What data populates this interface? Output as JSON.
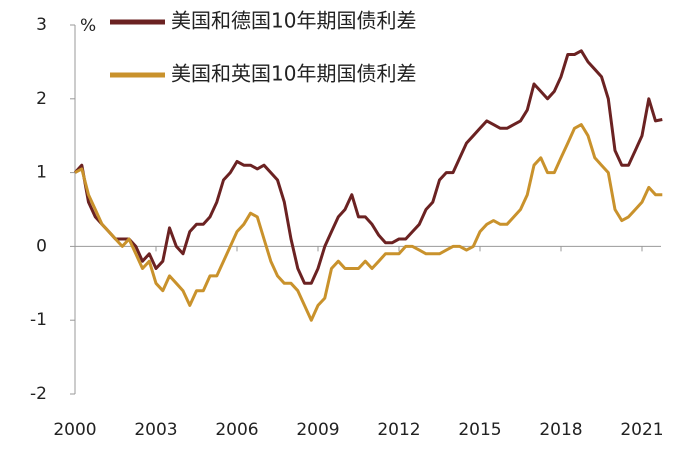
{
  "chart_data": {
    "type": "line",
    "unit": "%",
    "x": [
      2000,
      2000.25,
      2000.5,
      2000.75,
      2001,
      2001.25,
      2001.5,
      2001.75,
      2002,
      2002.25,
      2002.5,
      2002.75,
      2003,
      2003.25,
      2003.5,
      2003.75,
      2004,
      2004.25,
      2004.5,
      2004.75,
      2005,
      2005.25,
      2005.5,
      2005.75,
      2006,
      2006.25,
      2006.5,
      2006.75,
      2007,
      2007.25,
      2007.5,
      2007.75,
      2008,
      2008.25,
      2008.5,
      2008.75,
      2009,
      2009.25,
      2009.5,
      2009.75,
      2010,
      2010.25,
      2010.5,
      2010.75,
      2011,
      2011.25,
      2011.5,
      2011.75,
      2012,
      2012.25,
      2012.5,
      2012.75,
      2013,
      2013.25,
      2013.5,
      2013.75,
      2014,
      2014.25,
      2014.5,
      2014.75,
      2015,
      2015.25,
      2015.5,
      2015.75,
      2016,
      2016.25,
      2016.5,
      2016.75,
      2017,
      2017.25,
      2017.5,
      2017.75,
      2018,
      2018.25,
      2018.5,
      2018.75,
      2019,
      2019.25,
      2019.5,
      2019.75,
      2020,
      2020.25,
      2020.5,
      2020.75,
      2021,
      2021.25,
      2021.5,
      2021.75
    ],
    "series": [
      {
        "name": "美国和德国10年期国债利差",
        "color": "#6b2222",
        "values": [
          1.0,
          1.1,
          0.6,
          0.4,
          0.3,
          0.2,
          0.1,
          0.1,
          0.1,
          0.0,
          -0.2,
          -0.1,
          -0.3,
          -0.2,
          0.25,
          0.0,
          -0.1,
          0.2,
          0.3,
          0.3,
          0.4,
          0.6,
          0.9,
          1.0,
          1.15,
          1.1,
          1.1,
          1.05,
          1.1,
          1.0,
          0.9,
          0.6,
          0.1,
          -0.3,
          -0.5,
          -0.5,
          -0.3,
          0.0,
          0.2,
          0.4,
          0.5,
          0.7,
          0.4,
          0.4,
          0.3,
          0.15,
          0.05,
          0.05,
          0.1,
          0.1,
          0.2,
          0.3,
          0.5,
          0.6,
          0.9,
          1.0,
          1.0,
          1.2,
          1.4,
          1.5,
          1.6,
          1.7,
          1.65,
          1.6,
          1.6,
          1.65,
          1.7,
          1.85,
          2.2,
          2.1,
          2.0,
          2.1,
          2.3,
          2.6,
          2.6,
          2.65,
          2.5,
          2.4,
          2.3,
          2.0,
          1.3,
          1.1,
          1.1,
          1.3,
          1.5,
          2.0,
          1.7,
          1.72
        ]
      },
      {
        "name": "美国和英国10年期国债利差",
        "color": "#c9922c",
        "values": [
          1.0,
          1.05,
          0.7,
          0.5,
          0.3,
          0.2,
          0.1,
          0.0,
          0.1,
          -0.1,
          -0.3,
          -0.2,
          -0.5,
          -0.6,
          -0.4,
          -0.5,
          -0.6,
          -0.8,
          -0.6,
          -0.6,
          -0.4,
          -0.4,
          -0.2,
          0.0,
          0.2,
          0.3,
          0.45,
          0.4,
          0.1,
          -0.2,
          -0.4,
          -0.5,
          -0.5,
          -0.6,
          -0.8,
          -1.0,
          -0.8,
          -0.7,
          -0.3,
          -0.2,
          -0.3,
          -0.3,
          -0.3,
          -0.2,
          -0.3,
          -0.2,
          -0.1,
          -0.1,
          -0.1,
          0.0,
          0.0,
          -0.05,
          -0.1,
          -0.1,
          -0.1,
          -0.05,
          0.0,
          0.0,
          -0.05,
          0.0,
          0.2,
          0.3,
          0.35,
          0.3,
          0.3,
          0.4,
          0.5,
          0.7,
          1.1,
          1.2,
          1.0,
          1.0,
          1.2,
          1.4,
          1.6,
          1.65,
          1.5,
          1.2,
          1.1,
          1.0,
          0.5,
          0.35,
          0.4,
          0.5,
          0.6,
          0.8,
          0.7,
          0.7
        ]
      }
    ],
    "xlim": [
      2000,
      2022
    ],
    "xticks": [
      2000,
      2003,
      2006,
      2009,
      2012,
      2015,
      2018,
      2021
    ],
    "ylim": [
      -2,
      3
    ],
    "yticks": [
      -2,
      -1,
      0,
      1,
      2,
      3
    ]
  }
}
